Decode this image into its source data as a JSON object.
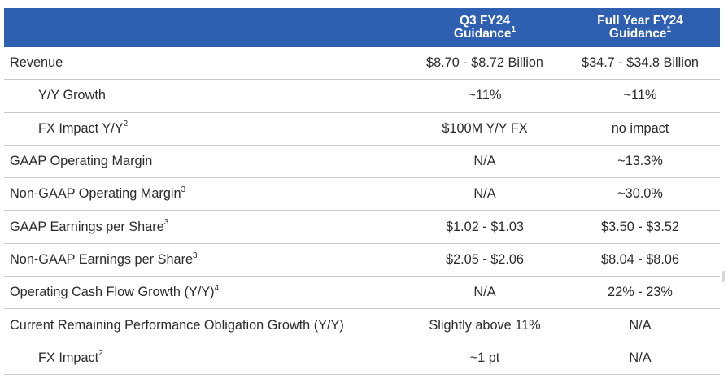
{
  "header": {
    "label": "",
    "q3": {
      "line1": "Q3 FY24",
      "line2": "Guidance",
      "note": "1"
    },
    "fy": {
      "line1": "Full Year FY24",
      "line2": "Guidance",
      "note": "1"
    }
  },
  "rows": [
    {
      "label": "Revenue",
      "note": "",
      "q3": "$8.70 - $8.72 Billion",
      "fy": "$34.7 - $34.8 Billion",
      "indent": false
    },
    {
      "label": "Y/Y Growth",
      "note": "",
      "q3": "~11%",
      "fy": "~11%",
      "indent": true
    },
    {
      "label": "FX Impact Y/Y",
      "note": "2",
      "q3": "$100M Y/Y FX",
      "fy": "no impact",
      "indent": true
    },
    {
      "label": "GAAP Operating Margin",
      "note": "",
      "q3": "N/A",
      "fy": "~13.3%",
      "indent": false
    },
    {
      "label": "Non-GAAP Operating Margin",
      "note": "3",
      "q3": "N/A",
      "fy": "~30.0%",
      "indent": false
    },
    {
      "label": "GAAP Earnings per Share",
      "note": "3",
      "q3": "$1.02 - $1.03",
      "fy": "$3.50 - $3.52",
      "indent": false
    },
    {
      "label": "Non-GAAP Earnings per Share",
      "note": "3",
      "q3": "$2.05 - $2.06",
      "fy": "$8.04 - $8.06",
      "indent": false
    },
    {
      "label": "Operating Cash Flow Growth (Y/Y)",
      "note": "4",
      "q3": "N/A",
      "fy": "22% - 23%",
      "indent": false
    },
    {
      "label": "Current Remaining Performance Obligation Growth (Y/Y)",
      "note": "",
      "q3": "Slightly above 11%",
      "fy": "N/A",
      "indent": false
    },
    {
      "label": "FX Impact",
      "note": "2",
      "q3": "~1 pt",
      "fy": "N/A",
      "indent": true
    }
  ],
  "colors": {
    "header_bg": "#2f5fb0",
    "header_text": "#ffffff",
    "body_text": "#2b2b2b",
    "divider": "#c9c9c9"
  }
}
